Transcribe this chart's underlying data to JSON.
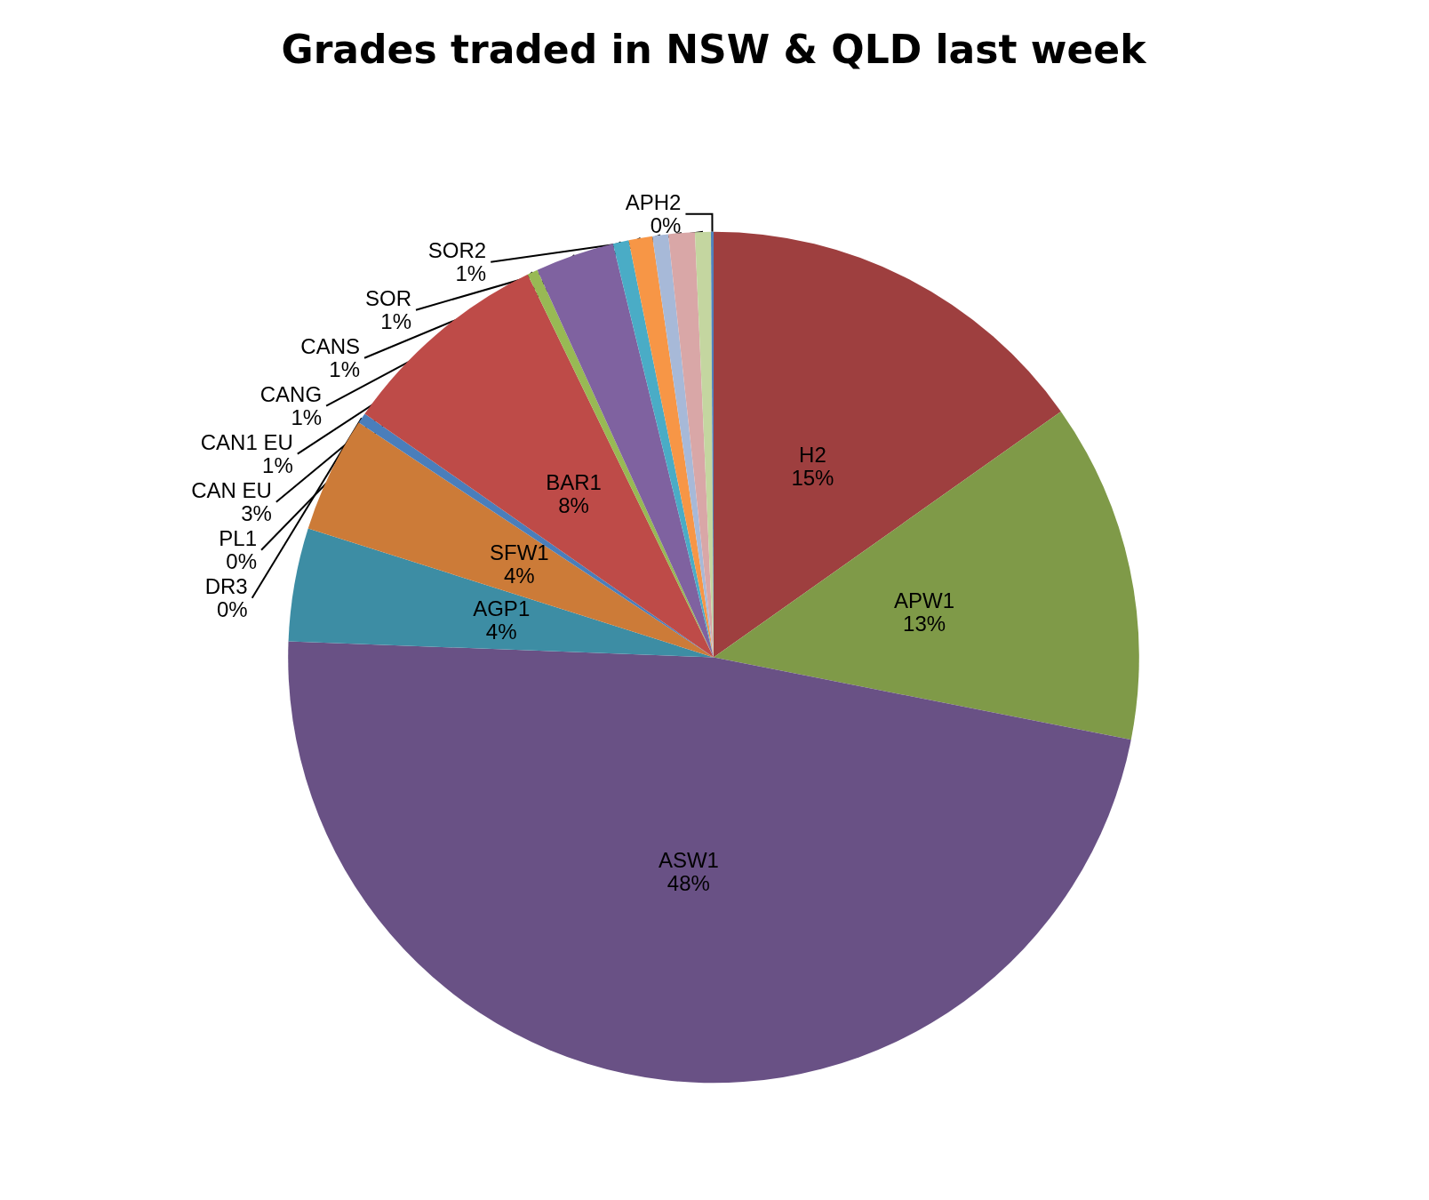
{
  "chart_data": {
    "type": "pie",
    "title": "Grades traded in NSW & QLD last week",
    "categories": [
      "H2",
      "APW1",
      "ASW1",
      "AGP1",
      "SFW1",
      "DR3",
      "BAR1",
      "PL1",
      "CAN EU",
      "CAN1 EU",
      "CANG",
      "CANS",
      "SOR",
      "SOR2",
      "APH2"
    ],
    "values": [
      15.2,
      12.9,
      47.5,
      4.3,
      4.4,
      0.4,
      8.1,
      0.4,
      3.0,
      0.6,
      0.9,
      0.6,
      1.0,
      0.6,
      0.1
    ],
    "value_labels": [
      "15%",
      "13%",
      "48%",
      "4%",
      "4%",
      "0%",
      "8%",
      "0%",
      "3%",
      "1%",
      "1%",
      "1%",
      "1%",
      "1%",
      "0%"
    ],
    "colors": [
      "#9e3f3f",
      "#7f9a48",
      "#695185",
      "#3d8da4",
      "#cc7b38",
      "#4a7ebb",
      "#be4b48",
      "#98b954",
      "#7f62a0",
      "#4aacc6",
      "#f79646",
      "#a7b9d8",
      "#d9a7a7",
      "#c4d6a0",
      "#4f81bd"
    ],
    "legend": false
  }
}
